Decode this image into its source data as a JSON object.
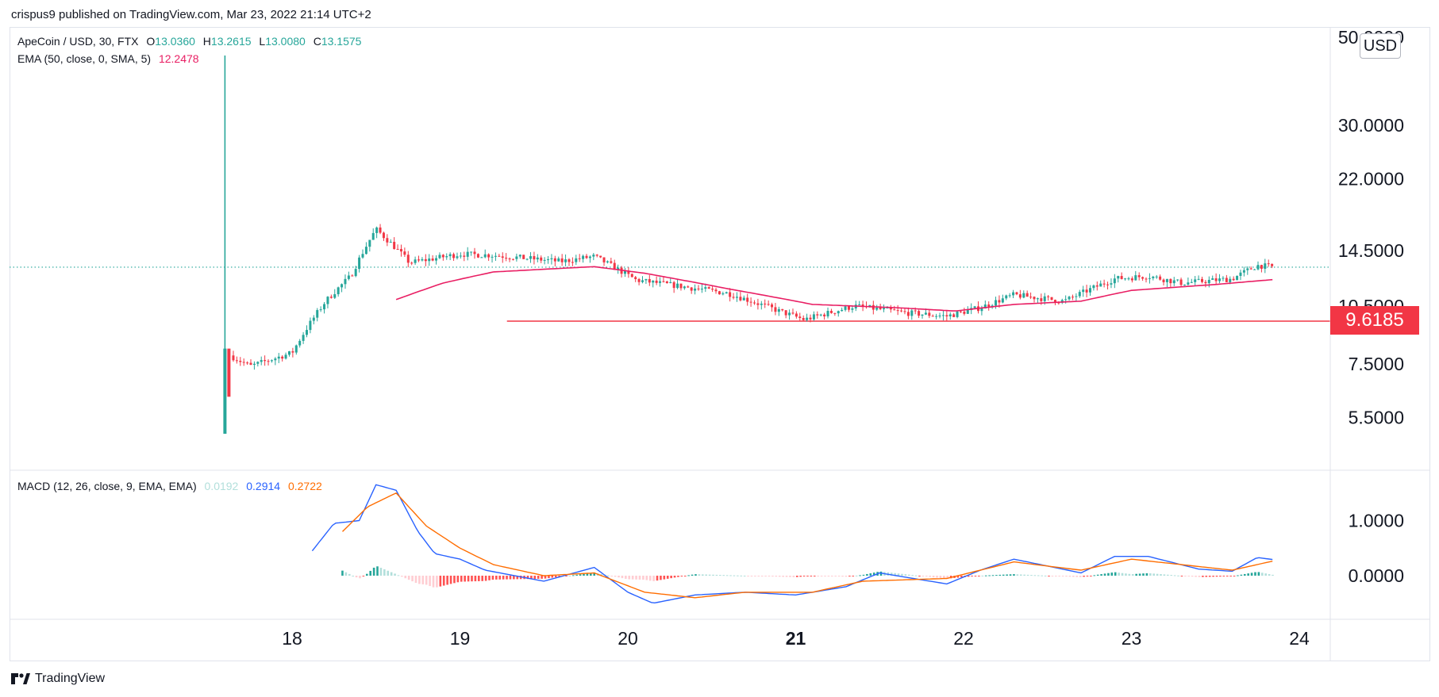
{
  "publisher": "crispus9 published on TradingView.com, Mar 23, 2022 21:14 UTC+2",
  "brand": "TradingView",
  "currency": "USD",
  "legend": {
    "symbol": "ApeCoin / USD, 30, FTX",
    "o_label": "O",
    "o": "13.0360",
    "h_label": "H",
    "h": "13.2615",
    "l_label": "L",
    "l": "13.0080",
    "c_label": "C",
    "c": "13.1575",
    "ema_label": "EMA (50, close, 0, SMA, 5)",
    "ema_value": "12.2478",
    "macd_label": "MACD (12, 26, close, 9, EMA, EMA)",
    "macd_hist": "0.0192",
    "macd_line": "0.2914",
    "macd_signal": "0.2722"
  },
  "colors": {
    "up": "#26a69a",
    "down": "#f23645",
    "ema": "#e91e63",
    "macd": "#2962ff",
    "signal": "#ff6d00",
    "hist_up": "#26a69a",
    "hist_up_light": "#b2dfdb",
    "hist_down": "#ff5252",
    "hist_down_light": "#ffcdd2",
    "support": "#f23645",
    "last_price": "#26a69a"
  },
  "chart_data": [
    {
      "type": "candlestick",
      "scale": "log",
      "y_ticks": [
        "50.0000",
        "30.0000",
        "22.0000",
        "14.5000",
        "10.5000",
        "7.5000",
        "5.5000"
      ],
      "x_ticks": [
        "18",
        "19",
        "20",
        "21",
        "22",
        "23",
        "24"
      ],
      "last_price": 13.1575,
      "support_level": 9.6185,
      "support_label": "9.6185",
      "ohlc_anchors_day_close": [
        [
          17.55,
          8.2
        ],
        [
          17.75,
          7.4
        ],
        [
          18.0,
          8.0
        ],
        [
          18.2,
          10.8
        ],
        [
          18.35,
          12.5
        ],
        [
          18.5,
          16.4
        ],
        [
          18.7,
          13.5
        ],
        [
          19.0,
          14.2
        ],
        [
          19.2,
          14.1
        ],
        [
          19.6,
          13.6
        ],
        [
          19.8,
          14.0
        ],
        [
          20.05,
          12.2
        ],
        [
          20.3,
          11.8
        ],
        [
          20.6,
          11.3
        ],
        [
          20.9,
          10.2
        ],
        [
          21.05,
          9.7
        ],
        [
          21.35,
          10.5
        ],
        [
          21.65,
          10.1
        ],
        [
          21.9,
          9.9
        ],
        [
          22.1,
          10.4
        ],
        [
          22.3,
          11.2
        ],
        [
          22.6,
          10.8
        ],
        [
          22.9,
          12.3
        ],
        [
          23.1,
          12.5
        ],
        [
          23.3,
          12.0
        ],
        [
          23.6,
          12.3
        ],
        [
          23.75,
          13.3
        ],
        [
          23.85,
          13.16
        ]
      ],
      "ema_anchors": [
        [
          18.62,
          10.9
        ],
        [
          18.9,
          12.0
        ],
        [
          19.2,
          12.8
        ],
        [
          19.8,
          13.2
        ],
        [
          20.1,
          12.7
        ],
        [
          20.6,
          11.6
        ],
        [
          21.1,
          10.6
        ],
        [
          21.6,
          10.4
        ],
        [
          21.95,
          10.2
        ],
        [
          22.3,
          10.6
        ],
        [
          22.7,
          10.8
        ],
        [
          23.0,
          11.5
        ],
        [
          23.5,
          11.9
        ],
        [
          23.85,
          12.25
        ]
      ]
    },
    {
      "type": "macd",
      "y_ticks": [
        "1.0000",
        "0.0000"
      ],
      "macd_anchors": [
        [
          18.12,
          0.45
        ],
        [
          18.25,
          0.95
        ],
        [
          18.4,
          1.0
        ],
        [
          18.5,
          1.65
        ],
        [
          18.62,
          1.55
        ],
        [
          18.75,
          0.8
        ],
        [
          18.85,
          0.4
        ],
        [
          19.0,
          0.3
        ],
        [
          19.15,
          0.1
        ],
        [
          19.5,
          -0.1
        ],
        [
          19.8,
          0.15
        ],
        [
          20.0,
          -0.3
        ],
        [
          20.15,
          -0.5
        ],
        [
          20.4,
          -0.35
        ],
        [
          20.7,
          -0.3
        ],
        [
          21.0,
          -0.35
        ],
        [
          21.3,
          -0.2
        ],
        [
          21.5,
          0.05
        ],
        [
          21.9,
          -0.15
        ],
        [
          22.1,
          0.1
        ],
        [
          22.3,
          0.3
        ],
        [
          22.7,
          0.05
        ],
        [
          22.9,
          0.35
        ],
        [
          23.1,
          0.35
        ],
        [
          23.4,
          0.12
        ],
        [
          23.6,
          0.08
        ],
        [
          23.75,
          0.33
        ],
        [
          23.85,
          0.29
        ]
      ],
      "signal_anchors": [
        [
          18.3,
          0.8
        ],
        [
          18.45,
          1.25
        ],
        [
          18.62,
          1.5
        ],
        [
          18.8,
          0.9
        ],
        [
          19.0,
          0.5
        ],
        [
          19.2,
          0.2
        ],
        [
          19.5,
          0.0
        ],
        [
          19.8,
          0.05
        ],
        [
          20.1,
          -0.3
        ],
        [
          20.4,
          -0.4
        ],
        [
          20.7,
          -0.3
        ],
        [
          21.1,
          -0.3
        ],
        [
          21.4,
          -0.1
        ],
        [
          21.9,
          -0.05
        ],
        [
          22.3,
          0.25
        ],
        [
          22.7,
          0.1
        ],
        [
          23.0,
          0.3
        ],
        [
          23.3,
          0.2
        ],
        [
          23.6,
          0.1
        ],
        [
          23.85,
          0.27
        ]
      ]
    }
  ]
}
